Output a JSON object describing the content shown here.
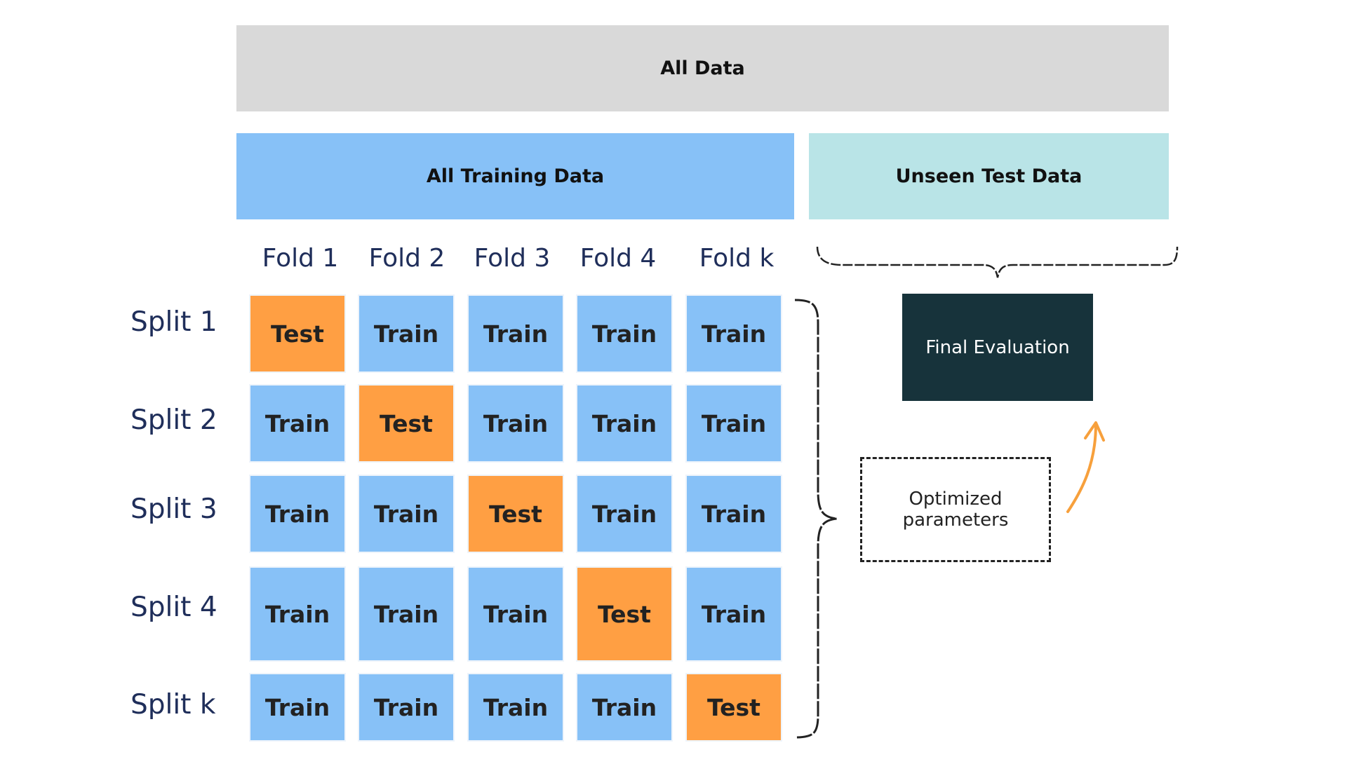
{
  "header": {
    "all_data": "All Data",
    "all_training_data": "All Training Data",
    "unseen_test_data": "Unseen Test Data"
  },
  "folds": [
    "Fold 1",
    "Fold 2",
    "Fold 3",
    "Fold 4",
    "Fold k"
  ],
  "splits": [
    {
      "label": "Split 1",
      "cells": [
        "Test",
        "Train",
        "Train",
        "Train",
        "Train"
      ]
    },
    {
      "label": "Split 2",
      "cells": [
        "Train",
        "Test",
        "Train",
        "Train",
        "Train"
      ]
    },
    {
      "label": "Split 3",
      "cells": [
        "Train",
        "Train",
        "Test",
        "Train",
        "Train"
      ]
    },
    {
      "label": "Split 4",
      "cells": [
        "Train",
        "Train",
        "Train",
        "Test",
        "Train"
      ]
    },
    {
      "label": "Split k",
      "cells": [
        "Train",
        "Train",
        "Train",
        "Train",
        "Test"
      ]
    }
  ],
  "final_evaluation": "Final Evaluation",
  "optimized_parameters": {
    "line1": "Optimized",
    "line2": "parameters"
  },
  "colors": {
    "train": "#87c1f7",
    "test": "#ff9f43",
    "all_data": "#d9d9d9",
    "unseen": "#b9e4e7",
    "final_eval": "#17333b",
    "label_text": "#1f2e5a",
    "arrow": "#f7a03c"
  }
}
